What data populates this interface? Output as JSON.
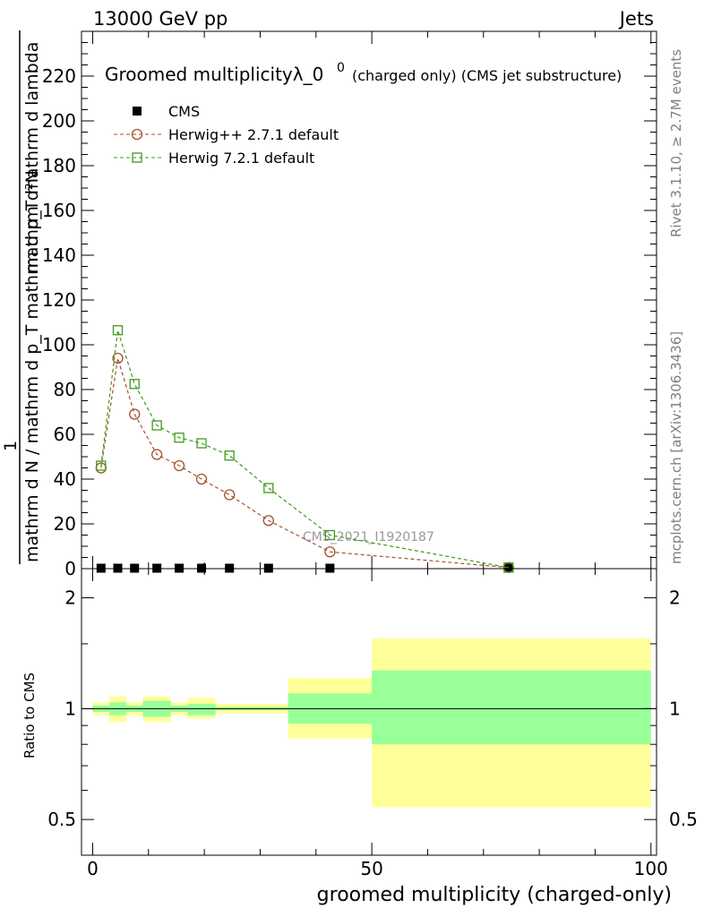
{
  "header": {
    "left": "13000 GeV pp",
    "right": "Jets"
  },
  "side_labels": {
    "rivet": "Rivet 3.1.10, ≥ 2.7M events",
    "mcplots": "mcplots.cern.ch [arXiv:1306.3436]"
  },
  "watermark": "CMS_2021_I1920187",
  "colors": {
    "herwigpp": "#a0522d",
    "herwig7": "#3e9a1b",
    "band_inner": "#99ff99",
    "band_outer": "#ffff99"
  },
  "chart_data": [
    {
      "type": "line",
      "title_main": "Groomed multiplicityλ_0",
      "title_sup": "0",
      "title_rest": "(charged only) (CMS jet substructure)",
      "ylabel_main": "mathrm d N / mathrm d p_T mathrm d p_T mathrm d lambda",
      "ylabel_num": "mathrm d²N",
      "ylabel_frac_num": "1",
      "ylim": [
        0,
        240
      ],
      "yticks": [
        0,
        20,
        40,
        60,
        80,
        100,
        120,
        140,
        160,
        180,
        200,
        220
      ],
      "x": [
        1.5,
        4.5,
        7.5,
        11.5,
        15.5,
        19.5,
        24.5,
        31.5,
        42.5,
        74.5
      ],
      "legend": [
        {
          "name": "CMS",
          "marker": "filled-square"
        },
        {
          "name": "Herwig++ 2.7.1 default",
          "marker": "open-circle"
        },
        {
          "name": "Herwig 7.2.1 default",
          "marker": "open-square"
        }
      ],
      "series": [
        {
          "name": "CMS",
          "values": [
            0.2,
            0.2,
            0.2,
            0.2,
            0.2,
            0.2,
            0.2,
            0.2,
            0.2,
            0.2
          ]
        },
        {
          "name": "Herwig++ 2.7.1 default",
          "values": [
            45,
            94,
            69,
            51,
            46,
            40,
            33,
            21.5,
            7.5,
            0.5
          ]
        },
        {
          "name": "Herwig 7.2.1 default",
          "values": [
            46,
            106.5,
            82.5,
            64,
            58.5,
            56,
            50.5,
            36,
            15,
            0.5
          ]
        }
      ],
      "legend_position": "top-left"
    },
    {
      "type": "area",
      "ylabel": "Ratio to CMS",
      "xlabel": "groomed multiplicity (charged-only)",
      "xlim": [
        -2,
        101
      ],
      "xticks": [
        0,
        50,
        100
      ],
      "ylim": [
        0.4,
        2.4
      ],
      "yticks": [
        0.5,
        1,
        2
      ],
      "ytick_labels": [
        "0.5",
        "1",
        "2"
      ],
      "bins": [
        {
          "x0": 0,
          "x1": 3,
          "inner": [
            0.98,
            1.02
          ],
          "outer": [
            0.96,
            1.04
          ]
        },
        {
          "x0": 3,
          "x1": 6,
          "inner": [
            0.96,
            1.04
          ],
          "outer": [
            0.92,
            1.08
          ]
        },
        {
          "x0": 6,
          "x1": 9,
          "inner": [
            0.98,
            1.02
          ],
          "outer": [
            0.96,
            1.04
          ]
        },
        {
          "x0": 9,
          "x1": 14,
          "inner": [
            0.95,
            1.05
          ],
          "outer": [
            0.92,
            1.08
          ]
        },
        {
          "x0": 14,
          "x1": 17,
          "inner": [
            0.98,
            1.02
          ],
          "outer": [
            0.96,
            1.04
          ]
        },
        {
          "x0": 17,
          "x1": 22,
          "inner": [
            0.96,
            1.03
          ],
          "outer": [
            0.94,
            1.07
          ]
        },
        {
          "x0": 22,
          "x1": 35,
          "inner": [
            0.99,
            1.01
          ],
          "outer": [
            0.97,
            1.03
          ]
        },
        {
          "x0": 35,
          "x1": 50,
          "inner": [
            0.91,
            1.1
          ],
          "outer": [
            0.83,
            1.21
          ]
        },
        {
          "x0": 50,
          "x1": 100,
          "inner": [
            0.8,
            1.27
          ],
          "outer": [
            0.54,
            1.55
          ]
        }
      ]
    }
  ]
}
